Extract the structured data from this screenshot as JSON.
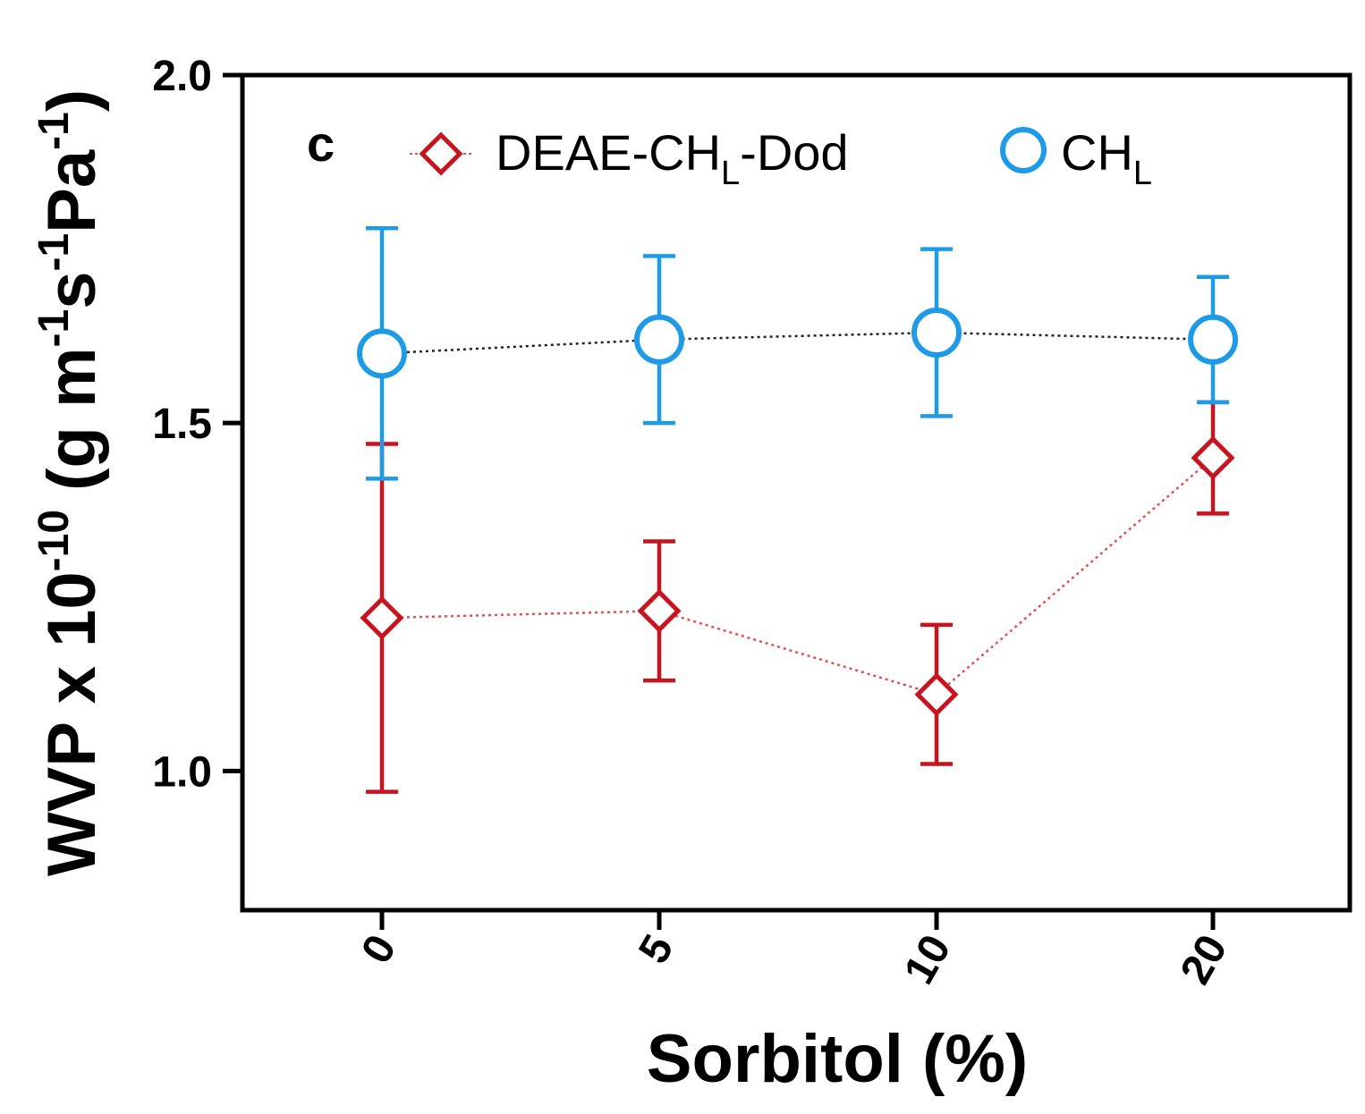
{
  "chart_data": {
    "type": "line",
    "panel_label": "c",
    "xlabel": "Sorbitol (%)",
    "ylabel": {
      "prefix": "WVP x 10",
      "exp1": "-10",
      "mid1": " (g m",
      "exp2": "-1",
      "mid2": "s",
      "exp3": "-1",
      "mid3": "Pa",
      "exp4": "-1",
      "suffix": ")"
    },
    "categories": [
      "0",
      "5",
      "10",
      "20"
    ],
    "ylim": [
      0.8,
      2.0
    ],
    "yticks": [
      {
        "value": 1.0,
        "label": "1.0"
      },
      {
        "value": 1.5,
        "label": "1.5"
      },
      {
        "value": 2.0,
        "label": "2.0"
      }
    ],
    "series": [
      {
        "name": "DEAE-CH",
        "name_sub": "L",
        "name_suffix": "-Dod",
        "marker": "diamond",
        "color": "#c8141e",
        "line_color": "#e05050",
        "values": [
          1.22,
          1.23,
          1.11,
          1.45
        ],
        "error": [
          0.25,
          0.1,
          0.1,
          0.08
        ]
      },
      {
        "name": "CH",
        "name_sub": "L",
        "name_suffix": "",
        "marker": "circle",
        "color": "#1e9be6",
        "line_color": "#222222",
        "values": [
          1.6,
          1.62,
          1.63,
          1.62
        ],
        "error": [
          0.18,
          0.12,
          0.12,
          0.09
        ]
      }
    ]
  }
}
